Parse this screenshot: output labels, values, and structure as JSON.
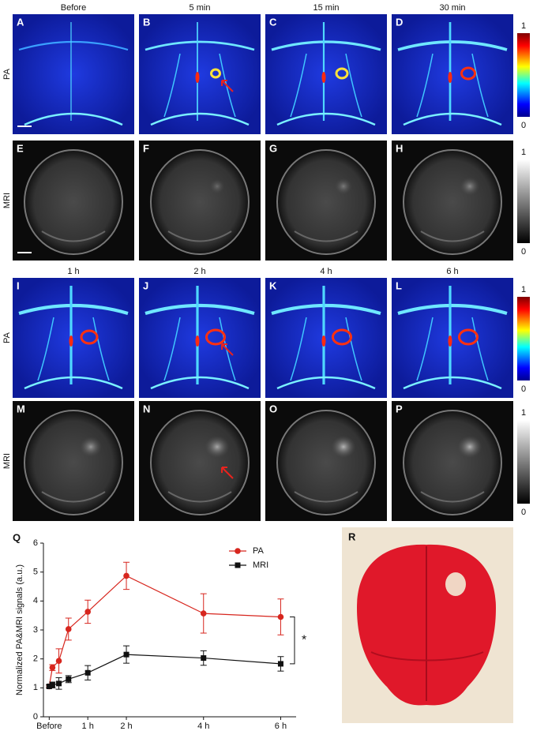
{
  "figure": {
    "column_titles_top": [
      "Before",
      "5 min",
      "15 min",
      "30 min"
    ],
    "column_titles_bottom": [
      "1 h",
      "2 h",
      "4 h",
      "6 h"
    ],
    "panel_letters": [
      "A",
      "B",
      "C",
      "D",
      "E",
      "F",
      "G",
      "H",
      "I",
      "J",
      "K",
      "L",
      "M",
      "N",
      "O",
      "P",
      "Q",
      "R"
    ],
    "row_labels": [
      "PA",
      "MRI",
      "PA",
      "MRI"
    ],
    "colorbar_labels": [
      "1",
      "0"
    ]
  },
  "chart_data": {
    "type": "line",
    "ylabel": "Normalized PA&MRI signals (a.u.)",
    "x": [
      0,
      0.083,
      0.25,
      0.5,
      1,
      2,
      4,
      6
    ],
    "xlim": [
      -0.15,
      6.4
    ],
    "xticks": [
      {
        "value": 0,
        "label": "Before"
      },
      {
        "value": 1,
        "label": "1 h"
      },
      {
        "value": 2,
        "label": "2 h"
      },
      {
        "value": 4,
        "label": "4 h"
      },
      {
        "value": 6,
        "label": "6 h"
      }
    ],
    "ylim": [
      0,
      6
    ],
    "yticks": [
      0,
      1,
      2,
      3,
      4,
      5,
      6
    ],
    "legend": "upper right",
    "series": [
      {
        "name": "PA",
        "color": "#d7261e",
        "marker": "circle",
        "values": [
          1.05,
          1.7,
          1.93,
          3.03,
          3.63,
          4.87,
          3.57,
          3.45
        ],
        "errors": [
          0.05,
          0.1,
          0.42,
          0.38,
          0.4,
          0.47,
          0.68,
          0.62
        ]
      },
      {
        "name": "MRI",
        "color": "#111111",
        "marker": "square",
        "values": [
          1.05,
          1.1,
          1.15,
          1.3,
          1.52,
          2.15,
          2.03,
          1.83
        ],
        "errors": [
          0.05,
          0.1,
          0.2,
          0.12,
          0.25,
          0.3,
          0.25,
          0.25
        ]
      }
    ],
    "annotation": "*"
  }
}
